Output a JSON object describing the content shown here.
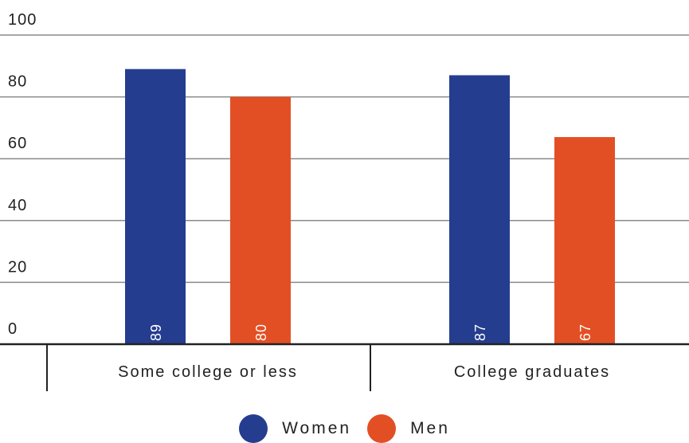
{
  "chart_data": {
    "type": "bar",
    "categories": [
      "Some college or less",
      "College graduates"
    ],
    "series": [
      {
        "name": "Women",
        "values": [
          89,
          87
        ],
        "color": "#253d8f"
      },
      {
        "name": "Men",
        "values": [
          80,
          67
        ],
        "color": "#e34f24"
      }
    ],
    "y_ticks": [
      "0",
      "20",
      "40",
      "60",
      "80",
      "100"
    ],
    "data_labels": [
      [
        "89",
        "87"
      ],
      [
        "80",
        "67"
      ]
    ],
    "ylim": [
      0,
      100
    ],
    "grid": true,
    "legend_position": "bottom-center",
    "title": "",
    "xlabel": "",
    "ylabel": ""
  }
}
